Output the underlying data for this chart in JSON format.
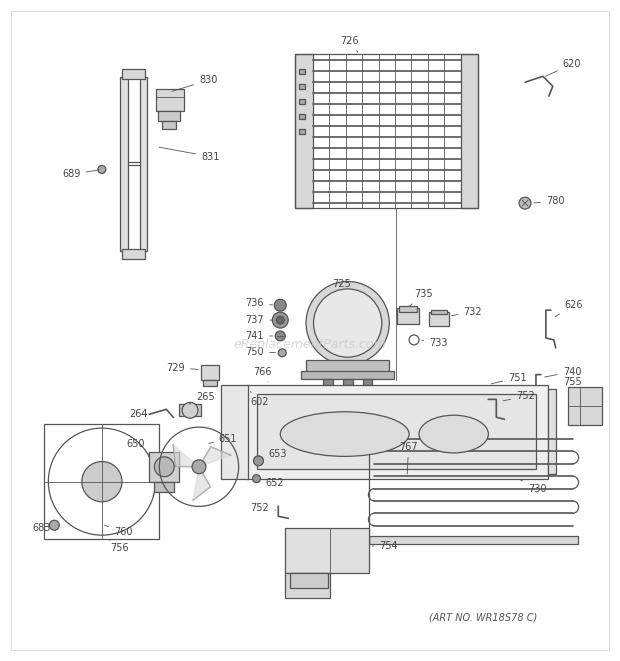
{
  "background_color": "#ffffff",
  "watermark": "eReplacementParts.com",
  "watermark_color": "#c8c8c8",
  "art_no": "(ART NO. WR18S78 C)",
  "fig_width": 6.2,
  "fig_height": 6.61,
  "dpi": 100,
  "line_color": "#555555",
  "label_color": "#444444",
  "label_fontsize": 7.0,
  "border_color": "#cccccc"
}
